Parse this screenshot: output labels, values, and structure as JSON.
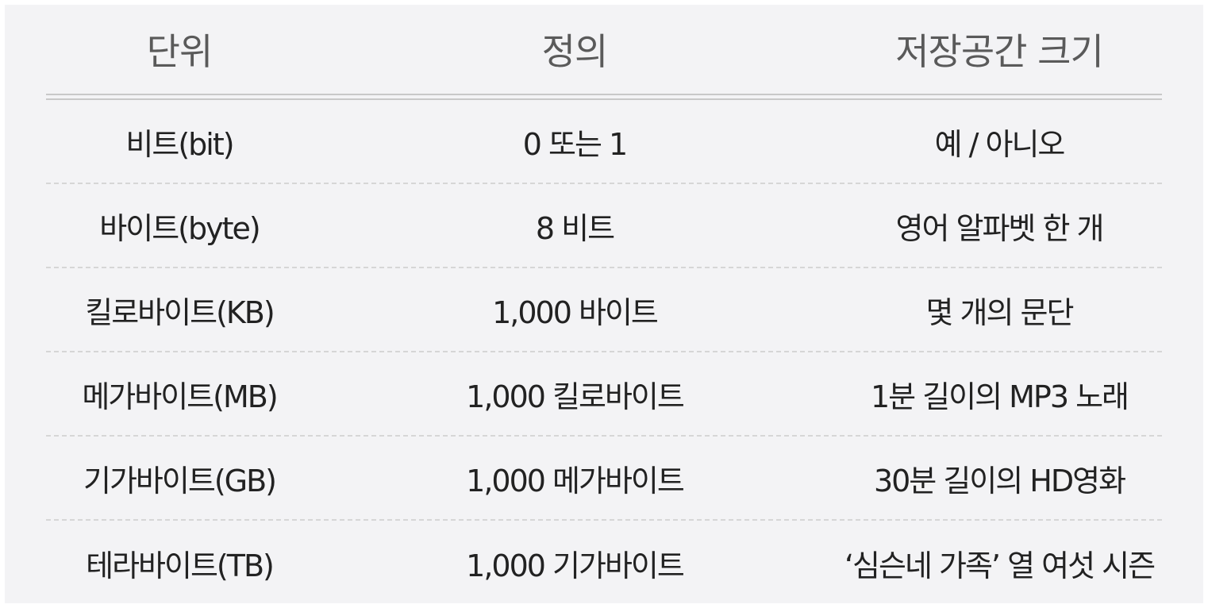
{
  "table": {
    "headers": [
      "단위",
      "정의",
      "저장공간 크기"
    ],
    "rows": [
      [
        "비트(bit)",
        "0 또는 1",
        "예 / 아니오"
      ],
      [
        "바이트(byte)",
        "8 비트",
        "영어 알파벳 한 개"
      ],
      [
        "킬로바이트(KB)",
        "1,000 바이트",
        "몇 개의 문단"
      ],
      [
        "메가바이트(MB)",
        "1,000 킬로바이트",
        "1분 길이의 MP3 노래"
      ],
      [
        "기가바이트(GB)",
        "1,000 메가바이트",
        "30분 길이의 HD영화"
      ],
      [
        "테라바이트(TB)",
        "1,000 기가바이트",
        "‘심슨네 가족’ 열 여섯 시즌"
      ]
    ]
  }
}
